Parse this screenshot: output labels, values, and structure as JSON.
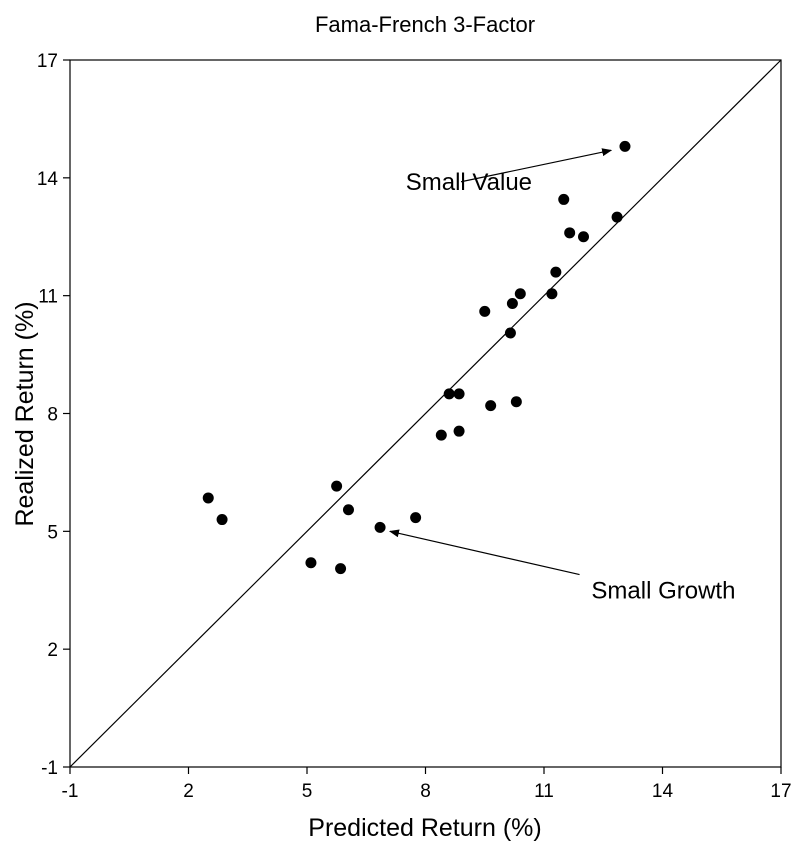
{
  "chart_data": {
    "type": "scatter",
    "title": "Fama-French 3-Factor",
    "xlabel": "Predicted Return (%)",
    "ylabel": "Realized Return (%)",
    "xlim": [
      -1,
      17
    ],
    "ylim": [
      -1,
      17
    ],
    "xticks": [
      -1,
      2,
      5,
      8,
      11,
      14,
      17
    ],
    "yticks": [
      -1,
      2,
      5,
      8,
      11,
      14,
      17
    ],
    "grid": false,
    "reference_line": {
      "x": [
        -1,
        17
      ],
      "y": [
        -1,
        17
      ]
    },
    "points": [
      {
        "x": 2.5,
        "y": 5.85
      },
      {
        "x": 2.85,
        "y": 5.3
      },
      {
        "x": 5.1,
        "y": 4.2
      },
      {
        "x": 5.75,
        "y": 6.15
      },
      {
        "x": 5.85,
        "y": 4.05
      },
      {
        "x": 6.05,
        "y": 5.55
      },
      {
        "x": 6.85,
        "y": 5.1
      },
      {
        "x": 7.75,
        "y": 5.35
      },
      {
        "x": 8.4,
        "y": 7.45
      },
      {
        "x": 8.6,
        "y": 8.5
      },
      {
        "x": 8.85,
        "y": 8.5
      },
      {
        "x": 8.85,
        "y": 7.55
      },
      {
        "x": 9.5,
        "y": 10.6
      },
      {
        "x": 9.65,
        "y": 8.2
      },
      {
        "x": 10.15,
        "y": 10.05
      },
      {
        "x": 10.2,
        "y": 10.8
      },
      {
        "x": 10.3,
        "y": 8.3
      },
      {
        "x": 10.4,
        "y": 11.05
      },
      {
        "x": 11.2,
        "y": 11.05
      },
      {
        "x": 11.3,
        "y": 11.6
      },
      {
        "x": 11.5,
        "y": 13.45
      },
      {
        "x": 11.65,
        "y": 12.6
      },
      {
        "x": 12.0,
        "y": 12.5
      },
      {
        "x": 12.85,
        "y": 13.0
      },
      {
        "x": 13.05,
        "y": 14.8
      }
    ],
    "annotations": [
      {
        "text": "Small Value",
        "text_x": 7.5,
        "text_y": 13.9,
        "arrow_from": [
          8.9,
          13.9
        ],
        "arrow_to": [
          12.7,
          14.7
        ]
      },
      {
        "text": "Small Growth",
        "text_x": 12.2,
        "text_y": 3.5,
        "arrow_from": [
          11.9,
          3.9
        ],
        "arrow_to": [
          7.1,
          5.0
        ]
      }
    ]
  }
}
